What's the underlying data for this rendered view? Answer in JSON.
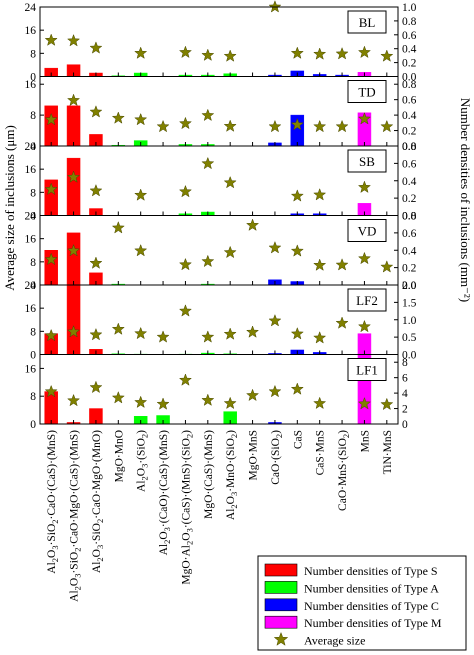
{
  "chart_data": {
    "type": "bar",
    "ylabel_left": "Average size of inclusions (μm)",
    "ylabel_right": "Number densities of inclusions (mm⁻²)",
    "colors": {
      "S": "#ff0000",
      "A": "#00ff00",
      "C": "#0000ff",
      "M": "#ff00ff",
      "star": "#808000"
    },
    "legend": [
      {
        "key": "S",
        "label": "Number densities of Type S",
        "marker": "box"
      },
      {
        "key": "A",
        "label": "Number densities of Type A",
        "marker": "box"
      },
      {
        "key": "C",
        "label": "Number densities of Type C",
        "marker": "box"
      },
      {
        "key": "M",
        "label": "Number densities of Type M",
        "marker": "box"
      },
      {
        "key": "star",
        "label": "Average size",
        "marker": "star"
      }
    ],
    "categories": [
      {
        "label": [
          "Al",
          "2",
          "O",
          "3",
          "·SiO",
          "2",
          "·CaO·(CaS)·(MnS)"
        ],
        "type": "S"
      },
      {
        "label": [
          "Al",
          "2",
          "O",
          "3",
          "·SiO",
          "2",
          "·CaO·MgO·(CaS)·(MnS)"
        ],
        "type": "S"
      },
      {
        "label": [
          "Al",
          "2",
          "O",
          "3",
          "·SiO",
          "2",
          "·CaO·MgO·(MnO)"
        ],
        "type": "S"
      },
      {
        "label": [
          "MgO·MnO"
        ],
        "type": "A"
      },
      {
        "label": [
          "Al",
          "2",
          "O",
          "3",
          "·(SiO",
          "2",
          ")"
        ],
        "type": "A"
      },
      {
        "label": [
          "Al",
          "2",
          "O",
          "3",
          "·(CaO)·(CaS)·(MnS)"
        ],
        "type": "A"
      },
      {
        "label": [
          "MgO·Al",
          "2",
          "O",
          "3",
          "·(CaS)·(MnS)·(SiO",
          "2",
          ")"
        ],
        "type": "A"
      },
      {
        "label": [
          "MgO·(CaS)·(MnS)"
        ],
        "type": "A"
      },
      {
        "label": [
          "Al",
          "2",
          "O",
          "3",
          "·MnO·(SiO",
          "2",
          ")"
        ],
        "type": "A"
      },
      {
        "label": [
          "MgO·MnS"
        ],
        "type": "C"
      },
      {
        "label": [
          "CaO·(SiO",
          "2",
          ")"
        ],
        "type": "C"
      },
      {
        "label": [
          "CaS"
        ],
        "type": "C"
      },
      {
        "label": [
          "CaS·MnS"
        ],
        "type": "C"
      },
      {
        "label": [
          "CaO·MnS·(SiO",
          "2",
          ")"
        ],
        "type": "C"
      },
      {
        "label": [
          "MnS"
        ],
        "type": "M"
      },
      {
        "label": [
          "TiN·MnS"
        ],
        "type": "M"
      }
    ],
    "panels": [
      {
        "name": "BL",
        "left_ticks": [
          "0",
          "8",
          "16",
          "24"
        ],
        "left_max": 24,
        "right_ticks": [
          "0.0",
          "0.2",
          "0.4",
          "0.6",
          "0.8",
          "1.0"
        ],
        "right_max": 1.0,
        "densities": [
          0.12,
          0.17,
          0.05,
          0.01,
          0.05,
          0.0,
          0.02,
          0.02,
          0.04,
          0.0,
          0.02,
          0.08,
          0.03,
          0.02,
          0.06,
          0.0
        ],
        "sizes": [
          12.5,
          12.3,
          9.8,
          0,
          8.0,
          0,
          8.3,
          7.3,
          7.0,
          0,
          24.2,
          8.0,
          7.7,
          7.8,
          8.3,
          7.0
        ]
      },
      {
        "name": "TD",
        "left_ticks": [
          "0",
          "8",
          "16"
        ],
        "left_max": 18,
        "right_ticks": [
          "0.0",
          "0.2",
          "0.4",
          "0.6",
          "0.8"
        ],
        "right_max": 0.9,
        "densities": [
          0.52,
          0.52,
          0.15,
          0.01,
          0.07,
          0.0,
          0.02,
          0.02,
          0.0,
          0.0,
          0.04,
          0.4,
          0.0,
          0.0,
          0.43,
          0.0
        ],
        "sizes": [
          6.8,
          11.8,
          8.8,
          7.2,
          6.8,
          5.0,
          5.8,
          7.9,
          5.1,
          0,
          5.0,
          5.5,
          5.0,
          5.0,
          7.0,
          5.0
        ]
      },
      {
        "name": "SB",
        "left_ticks": [
          "0",
          "8",
          "16",
          "24"
        ],
        "left_max": 24,
        "right_ticks": [
          "0.0",
          "0.2",
          "0.4",
          "0.6",
          "0.8"
        ],
        "right_max": 0.8,
        "densities": [
          0.41,
          0.66,
          0.08,
          0.0,
          0.0,
          0.0,
          0.02,
          0.04,
          0.0,
          0.0,
          0.0,
          0.02,
          0.02,
          0.0,
          0.14,
          0.0
        ],
        "sizes": [
          9.0,
          13.2,
          8.5,
          0,
          7.0,
          0,
          8.2,
          17.9,
          11.3,
          0,
          0,
          6.7,
          7.1,
          0,
          9.7,
          0
        ]
      },
      {
        "name": "VD",
        "left_ticks": [
          "0",
          "8",
          "16",
          "24"
        ],
        "left_max": 24,
        "right_ticks": [
          "0.0",
          "0.2",
          "0.4",
          "0.6",
          "0.8"
        ],
        "right_max": 0.8,
        "densities": [
          0.4,
          0.6,
          0.14,
          0.01,
          0.0,
          0.0,
          0.0,
          0.01,
          0.0,
          0.0,
          0.06,
          0.04,
          0.0,
          0.0,
          0.0,
          0.0
        ],
        "sizes": [
          8.8,
          11.8,
          7.5,
          19.7,
          11.8,
          0,
          7.0,
          8.1,
          11.2,
          20.6,
          12.8,
          11.7,
          6.8,
          6.9,
          9.1,
          6.2
        ]
      },
      {
        "name": "LF2",
        "left_ticks": [
          "0",
          "8",
          "16",
          "24"
        ],
        "left_max": 24,
        "right_ticks": [
          "0.0",
          "0.5",
          "1.0",
          "1.5",
          "2.0"
        ],
        "right_max": 2.0,
        "densities": [
          0.6,
          2.0,
          0.15,
          0.02,
          0.01,
          0.0,
          0.01,
          0.04,
          0.02,
          0.0,
          0.03,
          0.13,
          0.06,
          0.0,
          0.6,
          0.0
        ],
        "sizes": [
          6.5,
          7.8,
          6.8,
          8.7,
          7.2,
          6.0,
          15.0,
          6.0,
          7.0,
          7.7,
          11.6,
          7.1,
          5.7,
          10.8,
          9.6,
          0
        ]
      },
      {
        "name": "LF1",
        "left_ticks": [
          "0",
          "8",
          "16"
        ],
        "left_max": 20,
        "right_ticks": [
          "0",
          "2",
          "4",
          "6",
          "8"
        ],
        "right_max": 9.0,
        "densities": [
          4.2,
          0.2,
          2.0,
          0.0,
          1.0,
          1.1,
          0.0,
          0.0,
          1.6,
          0.0,
          0.2,
          0.0,
          0.0,
          0.0,
          9.6,
          0.0
        ],
        "sizes": [
          9.3,
          6.7,
          10.5,
          7.5,
          6.2,
          5.7,
          12.6,
          6.8,
          5.9,
          8.2,
          9.3,
          10.0,
          5.9,
          0,
          5.8,
          5.6
        ]
      }
    ]
  }
}
